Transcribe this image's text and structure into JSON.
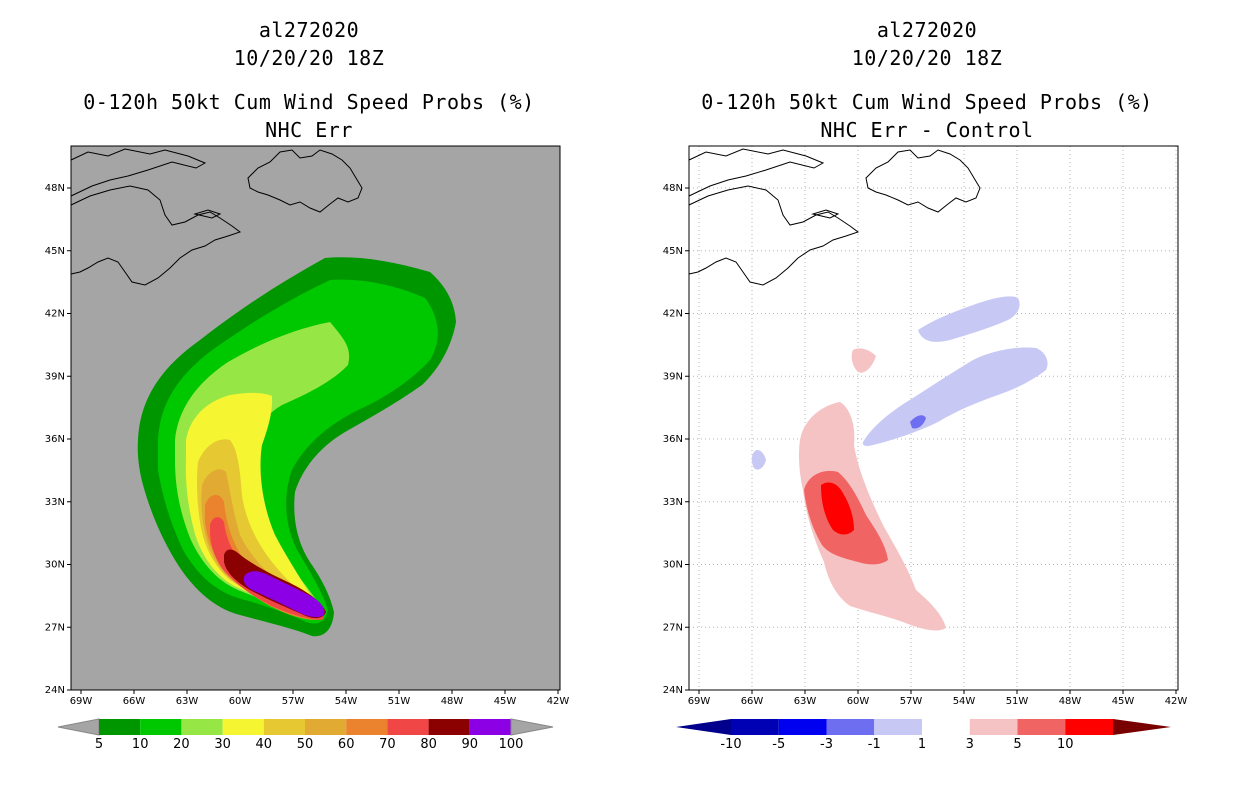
{
  "panels": [
    {
      "id": "left",
      "title_line1": "al272020",
      "title_line2": "10/20/20 18Z",
      "title_line3": "0-120h 50kt Cum Wind Speed Probs (%)",
      "title_line4": "NHC Err",
      "colorbar_labels": [
        "5",
        "10",
        "20",
        "30",
        "40",
        "50",
        "60",
        "70",
        "80",
        "90",
        "100"
      ],
      "colorbar_colors": [
        "#009600",
        "#00c800",
        "#96e646",
        "#f5f532",
        "#e6c832",
        "#e1aa32",
        "#eb822d",
        "#f04646",
        "#8b0000",
        "#8c00e6"
      ]
    },
    {
      "id": "right",
      "title_line1": "al272020",
      "title_line2": "10/20/20 18Z",
      "title_line3": "0-120h 50kt Cum Wind Speed Probs (%)",
      "title_line4": "NHC Err - Control",
      "colorbar_labels": [
        "-10",
        "-5",
        "-3",
        "-1",
        "1",
        "3",
        "5",
        "10"
      ],
      "colorbar_colors": [
        "#0000b4",
        "#0000f0",
        "#6e6ef0",
        "#c8c8f5",
        "#ffffff",
        "#f5c3c3",
        "#f06464",
        "#ff0000"
      ]
    }
  ],
  "axes": {
    "lon_labels": [
      "69W",
      "66W",
      "63W",
      "60W",
      "57W",
      "54W",
      "51W",
      "48W",
      "45W",
      "42W"
    ],
    "lat_labels": [
      "24N",
      "27N",
      "30N",
      "33N",
      "36N",
      "39N",
      "42N",
      "45N",
      "48N"
    ]
  },
  "colors": {
    "ocean_left": "#a5a5a5",
    "ocean_right": "#ffffff",
    "coast": "#000000",
    "grid": "#b4b4b4",
    "arrow_under_left": "#a5a5a5",
    "arrow_over_left": "#a5a5a5",
    "arrow_under_right": "#00008c",
    "arrow_over_right": "#780000"
  }
}
